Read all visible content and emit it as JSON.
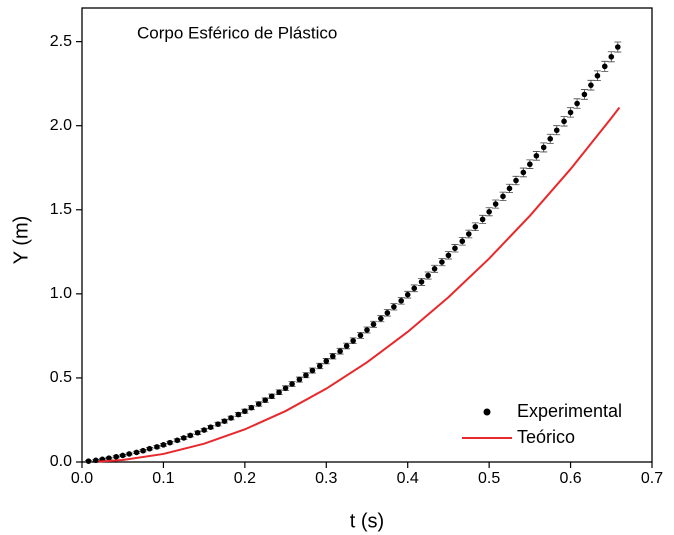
{
  "chart_data": {
    "type": "scatter",
    "annotation": "Corpo Esférico de Plástico",
    "x_label": "t (s)",
    "y_label": "Y (m)",
    "xlim": [
      0,
      0.7
    ],
    "ylim": [
      0,
      2.7
    ],
    "xticks": [
      {
        "value": 0,
        "label": "0.0"
      },
      0.1,
      0.2,
      0.3,
      0.4,
      0.5,
      0.6,
      0.7
    ],
    "yticks": [
      {
        "value": 0,
        "label": "0.0"
      },
      0.5,
      {
        "value": 1,
        "label": "1.0"
      },
      1.5,
      {
        "value": 2,
        "label": "2.0"
      },
      2.5
    ],
    "legend": "lower right",
    "series": [
      {
        "name": "Experimental",
        "type": "scatter",
        "color": "#000000",
        "x": [
          0.008,
          0.017,
          0.025,
          0.033,
          0.042,
          0.05,
          0.058,
          0.067,
          0.075,
          0.083,
          0.092,
          0.1,
          0.108,
          0.117,
          0.125,
          0.133,
          0.142,
          0.15,
          0.158,
          0.167,
          0.175,
          0.183,
          0.192,
          0.2,
          0.208,
          0.217,
          0.225,
          0.233,
          0.242,
          0.25,
          0.258,
          0.267,
          0.275,
          0.283,
          0.292,
          0.3,
          0.308,
          0.317,
          0.325,
          0.333,
          0.342,
          0.35,
          0.358,
          0.367,
          0.375,
          0.383,
          0.392,
          0.4,
          0.408,
          0.417,
          0.425,
          0.433,
          0.442,
          0.45,
          0.458,
          0.467,
          0.475,
          0.483,
          0.492,
          0.5,
          0.508,
          0.517,
          0.525,
          0.533,
          0.542,
          0.55,
          0.558,
          0.567,
          0.575,
          0.583,
          0.592,
          0.6,
          0.608,
          0.617,
          0.625,
          0.633,
          0.642,
          0.65,
          0.658
        ],
        "values": [
          0.005,
          0.01,
          0.016,
          0.023,
          0.031,
          0.039,
          0.048,
          0.057,
          0.067,
          0.079,
          0.09,
          0.102,
          0.115,
          0.129,
          0.143,
          0.158,
          0.174,
          0.19,
          0.207,
          0.225,
          0.243,
          0.262,
          0.282,
          0.302,
          0.323,
          0.345,
          0.368,
          0.391,
          0.415,
          0.439,
          0.464,
          0.49,
          0.516,
          0.544,
          0.571,
          0.6,
          0.629,
          0.659,
          0.69,
          0.721,
          0.753,
          0.785,
          0.819,
          0.853,
          0.887,
          0.923,
          0.959,
          0.995,
          1.033,
          1.071,
          1.109,
          1.149,
          1.189,
          1.229,
          1.271,
          1.313,
          1.356,
          1.399,
          1.443,
          1.488,
          1.534,
          1.58,
          1.627,
          1.674,
          1.722,
          1.771,
          1.821,
          1.871,
          1.922,
          1.973,
          2.026,
          2.079,
          2.132,
          2.186,
          2.241,
          2.297,
          2.353,
          2.41,
          2.468
        ],
        "errors": [
          0.004,
          0.005,
          0.005,
          0.005,
          0.006,
          0.006,
          0.006,
          0.007,
          0.007,
          0.007,
          0.008,
          0.008,
          0.008,
          0.009,
          0.009,
          0.009,
          0.01,
          0.01,
          0.01,
          0.011,
          0.011,
          0.011,
          0.012,
          0.012,
          0.012,
          0.013,
          0.013,
          0.013,
          0.014,
          0.014,
          0.014,
          0.015,
          0.015,
          0.015,
          0.016,
          0.016,
          0.016,
          0.017,
          0.017,
          0.017,
          0.018,
          0.018,
          0.018,
          0.019,
          0.019,
          0.019,
          0.02,
          0.02,
          0.02,
          0.021,
          0.021,
          0.021,
          0.022,
          0.022,
          0.022,
          0.023,
          0.023,
          0.023,
          0.024,
          0.024,
          0.024,
          0.025,
          0.025,
          0.025,
          0.026,
          0.026,
          0.026,
          0.027,
          0.027,
          0.027,
          0.028,
          0.028,
          0.028,
          0.029,
          0.029,
          0.029,
          0.03,
          0.03,
          0.03
        ]
      },
      {
        "name": "Teórico",
        "type": "line",
        "color": "#e8282b",
        "x": [
          0.02,
          0.05,
          0.1,
          0.15,
          0.2,
          0.25,
          0.3,
          0.35,
          0.4,
          0.45,
          0.5,
          0.55,
          0.6,
          0.65,
          0.66
        ],
        "values": [
          0.002,
          0.012,
          0.048,
          0.109,
          0.194,
          0.303,
          0.436,
          0.593,
          0.774,
          0.98,
          1.21,
          1.464,
          1.742,
          2.045,
          2.108
        ]
      }
    ]
  }
}
